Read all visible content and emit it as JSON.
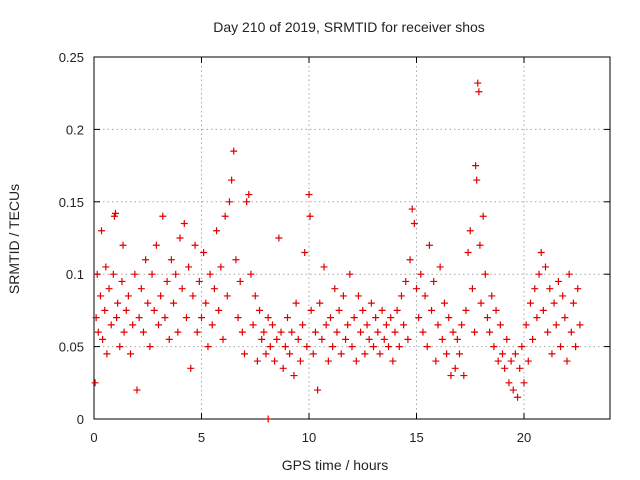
{
  "chart_data": {
    "type": "scatter",
    "title": "Day 210 of 2019, SRMTID for receiver shos",
    "xlabel": "GPS time / hours",
    "ylabel": "SRMTID / TECUs",
    "xlim": [
      0,
      24
    ],
    "ylim": [
      0,
      0.25
    ],
    "xticks": [
      0,
      5,
      10,
      15,
      20
    ],
    "xtick_labels": [
      "0",
      "5",
      "10",
      "15",
      "20"
    ],
    "yticks": [
      0,
      0.05,
      0.1,
      0.15,
      0.2,
      0.25
    ],
    "ytick_labels": [
      "0",
      "0.05",
      "0.1",
      "0.15",
      "0.2",
      "0.25"
    ],
    "grid": true,
    "marker": "+",
    "color": "#e00000",
    "series": [
      {
        "name": "SRMTID",
        "points": [
          [
            0.05,
            0.025
          ],
          [
            0.1,
            0.07
          ],
          [
            0.15,
            0.1
          ],
          [
            0.2,
            0.06
          ],
          [
            0.3,
            0.085
          ],
          [
            0.35,
            0.13
          ],
          [
            0.4,
            0.055
          ],
          [
            0.5,
            0.075
          ],
          [
            0.55,
            0.105
          ],
          [
            0.6,
            0.045
          ],
          [
            0.7,
            0.09
          ],
          [
            0.8,
            0.065
          ],
          [
            0.9,
            0.1
          ],
          [
            0.95,
            0.14
          ],
          [
            1.0,
            0.142
          ],
          [
            1.05,
            0.07
          ],
          [
            1.1,
            0.08
          ],
          [
            1.2,
            0.05
          ],
          [
            1.3,
            0.095
          ],
          [
            1.35,
            0.12
          ],
          [
            1.4,
            0.06
          ],
          [
            1.5,
            0.075
          ],
          [
            1.6,
            0.085
          ],
          [
            1.7,
            0.045
          ],
          [
            1.8,
            0.065
          ],
          [
            1.9,
            0.1
          ],
          [
            2.0,
            0.02
          ],
          [
            2.1,
            0.07
          ],
          [
            2.2,
            0.09
          ],
          [
            2.3,
            0.06
          ],
          [
            2.4,
            0.11
          ],
          [
            2.5,
            0.08
          ],
          [
            2.6,
            0.05
          ],
          [
            2.7,
            0.1
          ],
          [
            2.8,
            0.075
          ],
          [
            2.9,
            0.12
          ],
          [
            3.0,
            0.065
          ],
          [
            3.1,
            0.085
          ],
          [
            3.2,
            0.14
          ],
          [
            3.3,
            0.07
          ],
          [
            3.4,
            0.095
          ],
          [
            3.5,
            0.055
          ],
          [
            3.6,
            0.11
          ],
          [
            3.7,
            0.08
          ],
          [
            3.8,
            0.1
          ],
          [
            3.9,
            0.06
          ],
          [
            4.0,
            0.125
          ],
          [
            4.1,
            0.09
          ],
          [
            4.2,
            0.135
          ],
          [
            4.3,
            0.07
          ],
          [
            4.4,
            0.105
          ],
          [
            4.5,
            0.035
          ],
          [
            4.6,
            0.085
          ],
          [
            4.7,
            0.12
          ],
          [
            4.8,
            0.06
          ],
          [
            4.9,
            0.095
          ],
          [
            5.0,
            0.07
          ],
          [
            5.1,
            0.115
          ],
          [
            5.2,
            0.08
          ],
          [
            5.3,
            0.05
          ],
          [
            5.4,
            0.1
          ],
          [
            5.5,
            0.065
          ],
          [
            5.6,
            0.09
          ],
          [
            5.7,
            0.13
          ],
          [
            5.8,
            0.075
          ],
          [
            5.9,
            0.105
          ],
          [
            6.0,
            0.055
          ],
          [
            6.1,
            0.14
          ],
          [
            6.2,
            0.085
          ],
          [
            6.3,
            0.15
          ],
          [
            6.4,
            0.165
          ],
          [
            6.5,
            0.185
          ],
          [
            6.6,
            0.11
          ],
          [
            6.7,
            0.07
          ],
          [
            6.8,
            0.095
          ],
          [
            6.9,
            0.06
          ],
          [
            7.0,
            0.045
          ],
          [
            7.1,
            0.15
          ],
          [
            7.2,
            0.155
          ],
          [
            7.3,
            0.1
          ],
          [
            7.4,
            0.065
          ],
          [
            7.5,
            0.085
          ],
          [
            7.6,
            0.04
          ],
          [
            7.7,
            0.075
          ],
          [
            7.8,
            0.055
          ],
          [
            7.9,
            0.06
          ],
          [
            8.0,
            0.045
          ],
          [
            8.1,
            0.07
          ],
          [
            8.2,
            0.05
          ],
          [
            8.3,
            0.065
          ],
          [
            8.4,
            0.04
          ],
          [
            8.5,
            0.055
          ],
          [
            8.6,
            0.125
          ],
          [
            8.7,
            0.06
          ],
          [
            8.8,
            0.035
          ],
          [
            8.9,
            0.05
          ],
          [
            9.0,
            0.07
          ],
          [
            9.1,
            0.045
          ],
          [
            9.2,
            0.06
          ],
          [
            9.3,
            0.03
          ],
          [
            9.4,
            0.08
          ],
          [
            9.5,
            0.055
          ],
          [
            9.6,
            0.04
          ],
          [
            9.7,
            0.065
          ],
          [
            9.8,
            0.115
          ],
          [
            9.9,
            0.05
          ],
          [
            10.0,
            0.155
          ],
          [
            10.05,
            0.14
          ],
          [
            10.1,
            0.075
          ],
          [
            10.2,
            0.045
          ],
          [
            10.3,
            0.06
          ],
          [
            10.4,
            0.02
          ],
          [
            10.5,
            0.08
          ],
          [
            10.6,
            0.055
          ],
          [
            10.7,
            0.105
          ],
          [
            10.8,
            0.065
          ],
          [
            10.9,
            0.04
          ],
          [
            11.0,
            0.07
          ],
          [
            11.1,
            0.05
          ],
          [
            11.2,
            0.09
          ],
          [
            11.3,
            0.06
          ],
          [
            11.4,
            0.075
          ],
          [
            11.5,
            0.045
          ],
          [
            11.6,
            0.085
          ],
          [
            11.7,
            0.055
          ],
          [
            11.8,
            0.065
          ],
          [
            11.9,
            0.1
          ],
          [
            12.0,
            0.05
          ],
          [
            12.1,
            0.07
          ],
          [
            12.2,
            0.04
          ],
          [
            12.3,
            0.085
          ],
          [
            12.4,
            0.06
          ],
          [
            12.5,
            0.075
          ],
          [
            12.6,
            0.045
          ],
          [
            12.7,
            0.065
          ],
          [
            12.8,
            0.055
          ],
          [
            12.9,
            0.08
          ],
          [
            13.0,
            0.05
          ],
          [
            13.1,
            0.07
          ],
          [
            13.2,
            0.06
          ],
          [
            13.3,
            0.045
          ],
          [
            13.4,
            0.075
          ],
          [
            13.5,
            0.055
          ],
          [
            13.6,
            0.065
          ],
          [
            13.7,
            0.05
          ],
          [
            13.8,
            0.07
          ],
          [
            13.9,
            0.04
          ],
          [
            14.0,
            0.06
          ],
          [
            14.1,
            0.075
          ],
          [
            14.2,
            0.05
          ],
          [
            14.3,
            0.085
          ],
          [
            14.4,
            0.065
          ],
          [
            14.5,
            0.095
          ],
          [
            14.6,
            0.055
          ],
          [
            14.7,
            0.11
          ],
          [
            14.8,
            0.145
          ],
          [
            14.9,
            0.135
          ],
          [
            15.0,
            0.09
          ],
          [
            15.1,
            0.07
          ],
          [
            15.2,
            0.1
          ],
          [
            15.3,
            0.06
          ],
          [
            15.4,
            0.085
          ],
          [
            15.5,
            0.05
          ],
          [
            15.6,
            0.12
          ],
          [
            15.7,
            0.075
          ],
          [
            15.8,
            0.095
          ],
          [
            15.9,
            0.04
          ],
          [
            16.0,
            0.065
          ],
          [
            16.1,
            0.105
          ],
          [
            16.2,
            0.055
          ],
          [
            16.3,
            0.08
          ],
          [
            16.4,
            0.045
          ],
          [
            16.5,
            0.07
          ],
          [
            16.6,
            0.03
          ],
          [
            16.7,
            0.06
          ],
          [
            16.8,
            0.035
          ],
          [
            16.9,
            0.055
          ],
          [
            17.0,
            0.045
          ],
          [
            17.1,
            0.065
          ],
          [
            17.2,
            0.03
          ],
          [
            17.3,
            0.075
          ],
          [
            17.4,
            0.115
          ],
          [
            17.5,
            0.13
          ],
          [
            17.6,
            0.09
          ],
          [
            17.7,
            0.06
          ],
          [
            17.75,
            0.175
          ],
          [
            17.8,
            0.165
          ],
          [
            17.85,
            0.232
          ],
          [
            17.9,
            0.226
          ],
          [
            17.95,
            0.12
          ],
          [
            18.0,
            0.08
          ],
          [
            18.1,
            0.14
          ],
          [
            18.2,
            0.1
          ],
          [
            18.3,
            0.07
          ],
          [
            18.4,
            0.06
          ],
          [
            18.5,
            0.085
          ],
          [
            18.6,
            0.05
          ],
          [
            18.7,
            0.075
          ],
          [
            18.8,
            0.04
          ],
          [
            18.9,
            0.065
          ],
          [
            19.0,
            0.045
          ],
          [
            19.1,
            0.035
          ],
          [
            19.2,
            0.055
          ],
          [
            19.3,
            0.025
          ],
          [
            19.4,
            0.04
          ],
          [
            19.5,
            0.02
          ],
          [
            19.6,
            0.045
          ],
          [
            19.7,
            0.015
          ],
          [
            19.8,
            0.035
          ],
          [
            19.9,
            0.05
          ],
          [
            20.0,
            0.025
          ],
          [
            20.1,
            0.065
          ],
          [
            20.2,
            0.04
          ],
          [
            20.3,
            0.08
          ],
          [
            20.4,
            0.055
          ],
          [
            20.5,
            0.09
          ],
          [
            20.6,
            0.07
          ],
          [
            20.7,
            0.1
          ],
          [
            20.8,
            0.115
          ],
          [
            20.9,
            0.075
          ],
          [
            21.0,
            0.105
          ],
          [
            21.1,
            0.06
          ],
          [
            21.2,
            0.09
          ],
          [
            21.3,
            0.045
          ],
          [
            21.4,
            0.08
          ],
          [
            21.5,
            0.065
          ],
          [
            21.6,
            0.095
          ],
          [
            21.7,
            0.05
          ],
          [
            21.8,
            0.085
          ],
          [
            21.9,
            0.07
          ],
          [
            22.0,
            0.04
          ],
          [
            22.1,
            0.1
          ],
          [
            22.2,
            0.06
          ],
          [
            22.3,
            0.08
          ],
          [
            22.4,
            0.05
          ],
          [
            22.5,
            0.09
          ],
          [
            22.6,
            0.065
          ],
          [
            8.1,
            0.0
          ]
        ]
      }
    ]
  }
}
